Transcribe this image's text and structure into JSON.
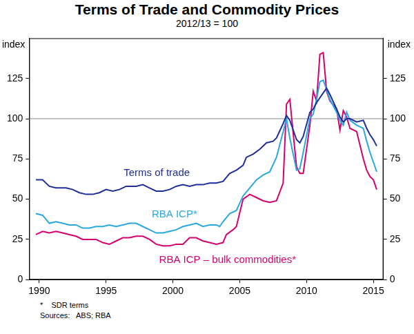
{
  "chart_data": {
    "type": "line",
    "title": "Terms of Trade and Commodity Prices",
    "subtitle": "2012/13 = 100",
    "ylabel": "index",
    "y2label": "index",
    "notes": [
      "*    SDR terms",
      "Sources:   ABS; RBA"
    ],
    "xlim": [
      1989.25,
      2015.75
    ],
    "xticks": [
      1990,
      1995,
      2000,
      2005,
      2010,
      2015
    ],
    "ylim": [
      0,
      150
    ],
    "yticks": [
      0,
      25,
      50,
      75,
      100,
      125
    ],
    "y2lim": [
      0,
      150
    ],
    "y2ticks": [
      0,
      25,
      50,
      75,
      100,
      125
    ],
    "reference_line": 100,
    "grid": false,
    "series": [
      {
        "name": "Terms of trade",
        "color": "#1f2f9a",
        "x": [
          1989.75,
          1990.25,
          1990.75,
          1991.25,
          1992,
          1992.5,
          1993,
          1993.5,
          1994,
          1994.5,
          1995,
          1995.5,
          1996,
          1996.5,
          1997.25,
          1997.75,
          1998.25,
          1998.75,
          1999.25,
          1999.75,
          2000.25,
          2000.75,
          2001.25,
          2001.75,
          2002.25,
          2002.75,
          2003.25,
          2003.75,
          2004.25,
          2004.75,
          2005.25,
          2005.5,
          2006,
          2006.5,
          2007,
          2007.5,
          2007.75,
          2008.25,
          2008.5,
          2008.75,
          2009.25,
          2009.5,
          2009.75,
          2010.25,
          2010.5,
          2010.75,
          2011.25,
          2011.5,
          2011.75,
          2012.25,
          2012.5,
          2012.75,
          2013,
          2013.25,
          2013.75,
          2014.25,
          2014.5,
          2014.75,
          2015,
          2015.25
        ],
        "values": [
          62,
          62,
          58,
          57,
          57,
          56,
          54,
          53,
          53,
          54,
          56,
          55,
          56,
          58,
          58,
          59,
          57,
          55,
          55,
          56,
          58,
          59,
          58,
          59,
          59,
          60,
          60,
          61,
          66,
          68,
          71,
          76,
          78,
          81,
          85,
          86,
          88,
          97,
          102,
          99,
          87,
          85,
          89,
          104,
          106,
          110,
          116,
          119,
          115,
          106,
          101,
          98,
          100,
          100,
          98,
          99,
          94,
          90,
          87,
          83
        ]
      },
      {
        "name": "RBA ICP*",
        "color": "#29a8e0",
        "x": [
          1989.75,
          1990.25,
          1990.75,
          1991.25,
          1991.75,
          1992.25,
          1992.75,
          1993.25,
          1993.75,
          1994.25,
          1994.75,
          1995.25,
          1995.75,
          1996.25,
          1996.75,
          1997.25,
          1997.75,
          1998.25,
          1998.75,
          1999.25,
          1999.75,
          2000.25,
          2000.75,
          2001.25,
          2001.75,
          2002.25,
          2002.75,
          2003.25,
          2003.5,
          2003.75,
          2004.25,
          2004.75,
          2005.25,
          2005.75,
          2006.25,
          2006.75,
          2007.25,
          2007.75,
          2008.25,
          2008.5,
          2008.75,
          2009.25,
          2009.5,
          2009.75,
          2010.25,
          2010.5,
          2010.75,
          2011,
          2011.25,
          2011.5,
          2011.75,
          2012.25,
          2012.5,
          2012.75,
          2013,
          2013.25,
          2013.75,
          2014.25,
          2014.5,
          2014.75,
          2015,
          2015.25
        ],
        "values": [
          41,
          40,
          35,
          36,
          35,
          34,
          34,
          32,
          32,
          33,
          33,
          34,
          33,
          34,
          35,
          35,
          33,
          31,
          29,
          29,
          30,
          31,
          33,
          34,
          35,
          33,
          34,
          34,
          33,
          36,
          41,
          43,
          52,
          57,
          62,
          65,
          67,
          76,
          92,
          100,
          88,
          68,
          69,
          79,
          100,
          103,
          112,
          123,
          124,
          118,
          112,
          104,
          99,
          96,
          104,
          99,
          96,
          94,
          86,
          79,
          73,
          67
        ]
      },
      {
        "name": "RBA ICP – bulk commodities*",
        "color": "#d4006f",
        "x": [
          1989.75,
          1990.25,
          1990.75,
          1991.25,
          1991.75,
          1992.25,
          1992.75,
          1993.25,
          1993.75,
          1994.25,
          1994.75,
          1995.25,
          1995.75,
          1996.25,
          1996.75,
          1997.25,
          1997.75,
          1998.25,
          1998.75,
          1999.25,
          1999.75,
          2000.25,
          2000.75,
          2001.25,
          2001.75,
          2002.25,
          2002.75,
          2003.25,
          2003.75,
          2004,
          2004.5,
          2004.75,
          2005.25,
          2005.75,
          2006.25,
          2006.75,
          2007.25,
          2007.75,
          2008.25,
          2008.5,
          2008.75,
          2009.25,
          2009.5,
          2009.75,
          2010.25,
          2010.5,
          2010.75,
          2011,
          2011.25,
          2011.5,
          2011.75,
          2012.25,
          2012.5,
          2012.75,
          2013,
          2013.25,
          2013.75,
          2014.25,
          2014.5,
          2014.75,
          2015,
          2015.25
        ],
        "values": [
          28,
          30,
          29,
          30,
          29,
          28,
          27,
          25,
          25,
          25,
          23,
          22,
          24,
          26,
          26,
          27,
          27,
          25,
          22,
          21,
          21,
          22,
          22,
          26,
          26,
          24,
          23,
          22,
          23,
          28,
          31,
          33,
          50,
          53,
          51,
          49,
          48,
          49,
          60,
          109,
          112,
          70,
          66,
          66,
          96,
          117,
          111,
          140,
          141,
          117,
          111,
          106,
          93,
          105,
          101,
          94,
          92,
          75,
          68,
          64,
          62,
          56
        ]
      }
    ]
  }
}
